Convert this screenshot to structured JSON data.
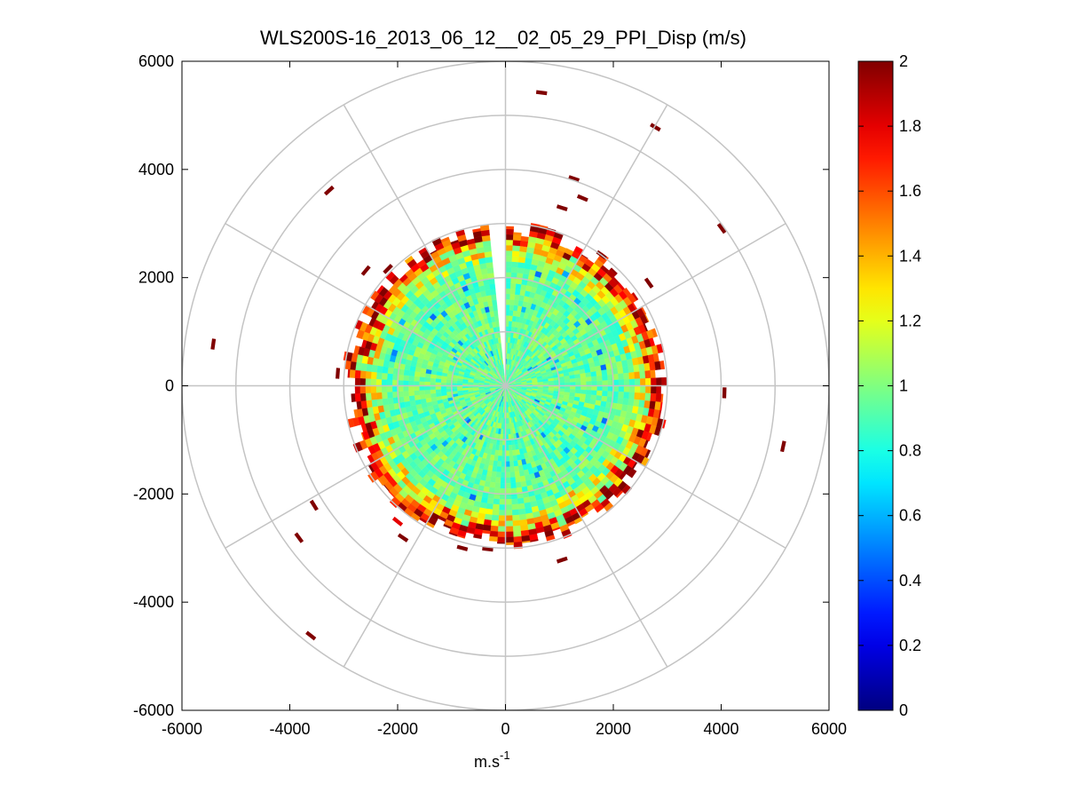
{
  "chart_data": {
    "type": "heatmap",
    "subtype": "polar-ppi",
    "title": "WLS200S-16_2013_06_12__02_05_29_PPI_Disp (m/s)",
    "xlabel": "m.s",
    "xlabel_superscript": "-1",
    "ylabel": "",
    "xlim": [
      -6000,
      6000
    ],
    "ylim": [
      -6000,
      6000
    ],
    "x_ticks": [
      "-6000",
      "-4000",
      "-2000",
      "0",
      "2000",
      "4000",
      "6000"
    ],
    "y_ticks": [
      "6000",
      "4000",
      "2000",
      "0",
      "-2000",
      "-4000",
      "-6000"
    ],
    "range_rings": [
      1000,
      2000,
      3000,
      4000,
      5000,
      6000
    ],
    "radial_lines_deg_step": 30,
    "colormap": "jet",
    "colorbar": {
      "min": 0,
      "max": 2,
      "ticks": [
        "2",
        "1.8",
        "1.6",
        "1.4",
        "1.2",
        "1",
        "0.8",
        "0.6",
        "0.4",
        "0.2",
        "0"
      ]
    },
    "dense_region": {
      "max_range_m": 2900,
      "typical_value": 0.95,
      "edge_value": 2.0,
      "gap_bearing_deg": [
        -7,
        0
      ]
    },
    "outlier_points": [
      {
        "x": 670,
        "y": 5420,
        "value": 2.0
      },
      {
        "x": 2780,
        "y": 4780,
        "value": 2.0
      },
      {
        "x": -3270,
        "y": 3610,
        "value": 2.0
      },
      {
        "x": 1270,
        "y": 3830,
        "value": 2.0
      },
      {
        "x": 1430,
        "y": 3470,
        "value": 2.0
      },
      {
        "x": 4010,
        "y": 2910,
        "value": 2.0
      },
      {
        "x": 1050,
        "y": 3290,
        "value": 2.0
      },
      {
        "x": -2590,
        "y": 2130,
        "value": 2.0
      },
      {
        "x": -2180,
        "y": 2160,
        "value": 2.0
      },
      {
        "x": 2660,
        "y": 1900,
        "value": 2.0
      },
      {
        "x": 1780,
        "y": 2420,
        "value": 2.0
      },
      {
        "x": -5420,
        "y": 770,
        "value": 2.0
      },
      {
        "x": -3110,
        "y": 230,
        "value": 2.0
      },
      {
        "x": 4060,
        "y": -130,
        "value": 2.0
      },
      {
        "x": 5150,
        "y": -1120,
        "value": 2.0
      },
      {
        "x": -3550,
        "y": -2210,
        "value": 2.0
      },
      {
        "x": -3830,
        "y": -2810,
        "value": 2.0
      },
      {
        "x": -1900,
        "y": -2810,
        "value": 2.0
      },
      {
        "x": 1050,
        "y": -3220,
        "value": 2.0
      },
      {
        "x": -3610,
        "y": -4620,
        "value": 2.0
      },
      {
        "x": -2000,
        "y": -2510,
        "value": 1.8
      },
      {
        "x": -800,
        "y": -3000,
        "value": 2.0
      },
      {
        "x": -330,
        "y": -3020,
        "value": 2.0
      }
    ]
  }
}
